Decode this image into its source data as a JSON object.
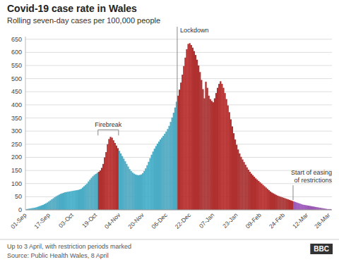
{
  "chart_data": {
    "type": "bar",
    "title": "Covid-19 case rate in Wales",
    "subtitle": "Rolling seven-day cases per 100,000 people",
    "footer": [
      "Up to 3 April, with restriction periods marked",
      "Source: Public Health Wales, 8 April"
    ],
    "logo": "BBC",
    "annotations": [
      "Firebreak",
      "Lockdown",
      "Start of easing\nof restrictions"
    ],
    "ylim": [
      0,
      660
    ],
    "yticks": [
      0,
      50,
      100,
      150,
      200,
      250,
      300,
      350,
      400,
      450,
      500,
      550,
      600,
      650
    ],
    "grid": true,
    "categories": [
      "01-Sep",
      null,
      null,
      null,
      null,
      null,
      null,
      null,
      null,
      null,
      null,
      null,
      null,
      null,
      null,
      null,
      "17-Sep",
      null,
      null,
      null,
      null,
      null,
      null,
      null,
      null,
      null,
      null,
      null,
      null,
      null,
      null,
      null,
      "03-Oct",
      null,
      null,
      null,
      null,
      null,
      null,
      null,
      null,
      null,
      null,
      null,
      null,
      null,
      null,
      null,
      "19-Oct",
      null,
      null,
      null,
      null,
      null,
      null,
      null,
      null,
      null,
      null,
      null,
      null,
      null,
      null,
      null,
      "04-Nov",
      null,
      null,
      null,
      null,
      null,
      null,
      null,
      null,
      null,
      null,
      null,
      null,
      null,
      null,
      null,
      "20-Nov",
      null,
      null,
      null,
      null,
      null,
      null,
      null,
      null,
      null,
      null,
      null,
      null,
      null,
      null,
      null,
      "06-Dec",
      null,
      null,
      null,
      null,
      null,
      null,
      null,
      null,
      null,
      null,
      null,
      null,
      null,
      null,
      null,
      "22-Dec",
      null,
      null,
      null,
      null,
      null,
      null,
      null,
      null,
      null,
      null,
      null,
      null,
      null,
      null,
      null,
      "07-Jan",
      null,
      null,
      null,
      null,
      null,
      null,
      null,
      null,
      null,
      null,
      null,
      null,
      null,
      null,
      null,
      "23-Jan",
      null,
      null,
      null,
      null,
      null,
      null,
      null,
      null,
      null,
      null,
      null,
      null,
      null,
      null,
      null,
      "09-Feb",
      null,
      null,
      null,
      null,
      null,
      null,
      null,
      null,
      null,
      null,
      null,
      null,
      null,
      null,
      null,
      "24-Feb",
      null,
      null,
      null,
      null,
      null,
      null,
      null,
      null,
      null,
      null,
      null,
      null,
      null,
      null,
      null,
      "12-Mar",
      null,
      null,
      null,
      null,
      null,
      null,
      null,
      null,
      null,
      null,
      null,
      null,
      null,
      null,
      "28-Mar"
    ],
    "values": [
      3,
      4,
      5,
      6,
      7,
      8,
      9,
      11,
      13,
      15,
      17,
      19,
      22,
      25,
      28,
      32,
      36,
      40,
      44,
      48,
      52,
      55,
      58,
      61,
      63,
      65,
      67,
      68,
      69,
      70,
      71,
      72,
      73,
      74,
      75,
      76,
      78,
      80,
      85,
      90,
      95,
      100,
      108,
      115,
      122,
      128,
      133,
      137,
      141,
      145,
      150,
      160,
      175,
      200,
      220,
      250,
      270,
      278,
      275,
      265,
      255,
      245,
      235,
      225,
      215,
      205,
      195,
      185,
      175,
      165,
      155,
      148,
      142,
      138,
      135,
      133,
      132,
      133,
      135,
      140,
      148,
      158,
      170,
      183,
      197,
      210,
      222,
      233,
      243,
      252,
      260,
      268,
      275,
      282,
      290,
      298,
      308,
      320,
      335,
      352,
      370,
      390,
      412,
      435,
      458,
      485,
      515,
      548,
      580,
      612,
      632,
      635,
      628,
      618,
      605,
      590,
      572,
      550,
      525,
      495,
      460,
      425,
      488,
      465,
      435,
      422,
      415,
      410,
      425,
      445,
      465,
      480,
      490,
      480,
      465,
      445,
      422,
      398,
      372,
      345,
      318,
      292,
      268,
      248,
      230,
      215,
      202,
      192,
      182,
      172,
      162,
      153,
      145,
      138,
      132,
      126,
      120,
      115,
      110,
      105,
      100,
      95,
      90,
      85,
      80,
      75,
      70,
      66,
      63,
      60,
      57,
      54,
      52,
      50,
      48,
      46,
      44,
      42,
      40,
      38,
      36,
      34,
      32,
      30,
      28,
      26,
      24,
      22,
      20,
      19,
      18,
      17,
      16,
      15,
      14,
      13,
      12,
      11,
      10,
      9,
      8,
      7,
      6,
      5,
      4,
      3,
      3,
      3
    ],
    "colors": [
      "#4BACC6",
      "#4BACC6",
      "#4BACC6",
      "#4BACC6",
      "#4BACC6",
      "#4BACC6",
      "#4BACC6",
      "#4BACC6",
      "#4BACC6",
      "#4BACC6",
      "#4BACC6",
      "#4BACC6",
      "#4BACC6",
      "#4BACC6",
      "#4BACC6",
      "#4BACC6",
      "#4BACC6",
      "#4BACC6",
      "#4BACC6",
      "#4BACC6",
      "#4BACC6",
      "#4BACC6",
      "#4BACC6",
      "#4BACC6",
      "#4BACC6",
      "#4BACC6",
      "#4BACC6",
      "#4BACC6",
      "#4BACC6",
      "#4BACC6",
      "#4BACC6",
      "#4BACC6",
      "#4BACC6",
      "#4BACC6",
      "#4BACC6",
      "#4BACC6",
      "#4BACC6",
      "#4BACC6",
      "#4BACC6",
      "#4BACC6",
      "#4BACC6",
      "#4BACC6",
      "#4BACC6",
      "#4BACC6",
      "#4BACC6",
      "#4BACC6",
      "#4BACC6",
      "#4BACC6",
      "#4BACC6",
      "#B03030",
      "#B03030",
      "#B03030",
      "#B03030",
      "#B03030",
      "#B03030",
      "#B03030",
      "#B03030",
      "#B03030",
      "#B03030",
      "#B03030",
      "#B03030",
      "#B03030",
      "#B03030",
      "#4BACC6",
      "#4BACC6",
      "#4BACC6",
      "#4BACC6",
      "#4BACC6",
      "#4BACC6",
      "#4BACC6",
      "#4BACC6",
      "#4BACC6",
      "#4BACC6",
      "#4BACC6",
      "#4BACC6",
      "#4BACC6",
      "#4BACC6",
      "#4BACC6",
      "#4BACC6",
      "#4BACC6",
      "#4BACC6",
      "#4BACC6",
      "#4BACC6",
      "#4BACC6",
      "#4BACC6",
      "#4BACC6",
      "#4BACC6",
      "#4BACC6",
      "#4BACC6",
      "#4BACC6",
      "#4BACC6",
      "#4BACC6",
      "#4BACC6",
      "#4BACC6",
      "#4BACC6",
      "#4BACC6",
      "#4BACC6",
      "#4BACC6",
      "#4BACC6",
      "#4BACC6",
      "#4BACC6",
      "#4BACC6",
      "#4BACC6",
      "#B03030",
      "#B03030",
      "#B03030",
      "#B03030",
      "#B03030",
      "#B03030",
      "#B03030",
      "#B03030",
      "#B03030",
      "#B03030",
      "#B03030",
      "#B03030",
      "#B03030",
      "#B03030",
      "#B03030",
      "#B03030",
      "#B03030",
      "#B03030",
      "#B03030",
      "#B03030",
      "#B03030",
      "#B03030",
      "#B03030",
      "#B03030",
      "#B03030",
      "#B03030",
      "#B03030",
      "#B03030",
      "#B03030",
      "#B03030",
      "#B03030",
      "#B03030",
      "#B03030",
      "#B03030",
      "#B03030",
      "#B03030",
      "#B03030",
      "#B03030",
      "#B03030",
      "#B03030",
      "#B03030",
      "#B03030",
      "#B03030",
      "#B03030",
      "#B03030",
      "#B03030",
      "#B03030",
      "#B03030",
      "#B03030",
      "#B03030",
      "#B03030",
      "#B03030",
      "#B03030",
      "#B03030",
      "#B03030",
      "#B03030",
      "#B03030",
      "#B03030",
      "#B03030",
      "#B03030",
      "#B03030",
      "#B03030",
      "#B03030",
      "#B03030",
      "#B03030",
      "#B03030",
      "#B03030",
      "#B03030",
      "#B03030",
      "#B03030",
      "#B03030",
      "#B03030",
      "#B03030",
      "#B03030",
      "#B03030",
      "#B03030",
      "#B03030",
      "#B03030",
      "#B03030",
      "#9B59B6",
      "#9B59B6",
      "#9B59B6",
      "#9B59B6",
      "#9B59B6",
      "#9B59B6",
      "#9B59B6",
      "#9B59B6",
      "#9B59B6",
      "#9B59B6",
      "#9B59B6",
      "#9B59B6",
      "#9B59B6",
      "#9B59B6",
      "#9B59B6",
      "#9B59B6",
      "#9B59B6",
      "#9B59B6",
      "#9B59B6",
      "#9B59B6",
      "#9B59B6",
      "#9B59B6",
      "#9B59B6",
      "#9B59B6",
      "#9B59B6",
      "#9B59B6"
    ]
  }
}
